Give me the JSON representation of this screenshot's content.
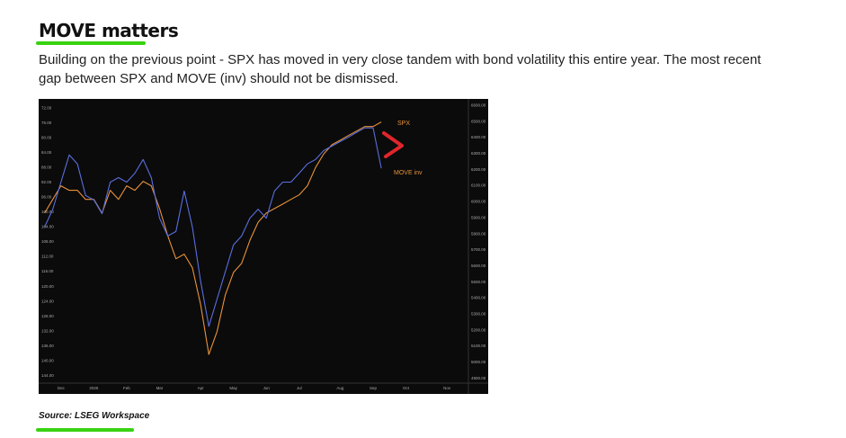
{
  "heading": "MOVE matters",
  "paragraph": "Building on the previous point - SPX has moved in very close tandem with bond volatility this entire year. The most recent gap between SPX and MOVE (inv) should not be dismissed.",
  "source": "Source: LSEG Workspace",
  "chart_data": {
    "type": "line",
    "categories": [
      null,
      null,
      "Dec",
      null,
      null,
      null,
      "2025",
      null,
      null,
      null,
      "Feb",
      null,
      null,
      null,
      "Mar",
      null,
      null,
      null,
      null,
      "Apr",
      null,
      null,
      null,
      "May",
      null,
      null,
      null,
      "Jun",
      null,
      null,
      null,
      "Jul",
      null,
      null,
      null,
      null,
      "Aug",
      null,
      null,
      null,
      "Sep",
      null,
      null,
      null,
      "Oct",
      null,
      null,
      null,
      null,
      "Nov",
      null,
      null
    ],
    "series": [
      {
        "name": "SPX",
        "color": "#e8923a",
        "axis": "y2",
        "values": [
          5930,
          6015,
          6100,
          6072,
          6072,
          6015,
          6015,
          5930,
          6072,
          6015,
          6100,
          6072,
          6128,
          6100,
          5958,
          5788,
          5645,
          5674,
          5589,
          5361,
          5049,
          5191,
          5418,
          5560,
          5617,
          5759,
          5873,
          5930,
          5958,
          5986,
          6015,
          6043,
          6100,
          6214,
          6299,
          6356,
          6384,
          6413,
          6441,
          6469,
          6469,
          6498,
          null,
          null,
          null,
          null,
          null,
          null,
          null,
          null,
          null,
          null
        ]
      },
      {
        "name": "MOVE inv",
        "color": "#5a6ee0",
        "axis": "y",
        "values": [
          104.0,
          99.2,
          91.9,
          84.6,
          87.0,
          95.5,
          96.7,
          100.4,
          91.9,
          90.7,
          91.9,
          89.5,
          85.8,
          90.7,
          101.6,
          106.4,
          105.2,
          94.3,
          104.0,
          118.5,
          130.7,
          123.4,
          116.1,
          108.8,
          106.4,
          101.6,
          99.2,
          101.6,
          94.3,
          91.9,
          91.9,
          89.5,
          87.0,
          85.8,
          83.4,
          82.2,
          81.0,
          79.8,
          78.5,
          77.3,
          77.3,
          88.2,
          null,
          null,
          null,
          null,
          null,
          null,
          null,
          null,
          null,
          null
        ]
      }
    ],
    "ylim": [
      70,
      146
    ],
    "y_inverted": true,
    "yticks": [
      {
        "value": 72,
        "label": "72.00"
      },
      {
        "value": 76,
        "label": "76.00"
      },
      {
        "value": 80,
        "label": "80.00"
      },
      {
        "value": 84,
        "label": "84.00"
      },
      {
        "value": 88,
        "label": "88.00"
      },
      {
        "value": 92,
        "label": "92.00"
      },
      {
        "value": 96,
        "label": "96.00"
      },
      {
        "value": 100,
        "label": "100.00"
      },
      {
        "value": 104,
        "label": "104.00"
      },
      {
        "value": 108,
        "label": "108.00"
      },
      {
        "value": 112,
        "label": "112.00"
      },
      {
        "value": 116,
        "label": "116.00"
      },
      {
        "value": 120,
        "label": "120.00"
      },
      {
        "value": 124,
        "label": "124.00"
      },
      {
        "value": 128,
        "label": "128.00"
      },
      {
        "value": 132,
        "label": "132.00"
      },
      {
        "value": 136,
        "label": "136.00"
      },
      {
        "value": 140,
        "label": "140.00"
      },
      {
        "value": 144,
        "label": "144.00"
      }
    ],
    "y2lim": [
      4870,
      6630
    ],
    "y2ticks": [
      {
        "value": 6600,
        "label": "6600.00"
      },
      {
        "value": 6500,
        "label": "6500.00"
      },
      {
        "value": 6400,
        "label": "6400.00"
      },
      {
        "value": 6300,
        "label": "6300.00"
      },
      {
        "value": 6200,
        "label": "6200.00"
      },
      {
        "value": 6100,
        "label": "6100.00"
      },
      {
        "value": 6000,
        "label": "6000.00"
      },
      {
        "value": 5900,
        "label": "5900.00"
      },
      {
        "value": 5800,
        "label": "5800.00"
      },
      {
        "value": 5700,
        "label": "5700.00"
      },
      {
        "value": 5600,
        "label": "5600.00"
      },
      {
        "value": 5500,
        "label": "5500.00"
      },
      {
        "value": 5400,
        "label": "5400.00"
      },
      {
        "value": 5300,
        "label": "5300.00"
      },
      {
        "value": 5200,
        "label": "5200.00"
      },
      {
        "value": 5100,
        "label": "5100.00"
      },
      {
        "value": 5000,
        "label": "5000.00"
      },
      {
        "value": 4900,
        "label": "4900.00"
      }
    ],
    "annotations": [
      "SPX",
      "MOVE inv"
    ],
    "grid": false
  }
}
